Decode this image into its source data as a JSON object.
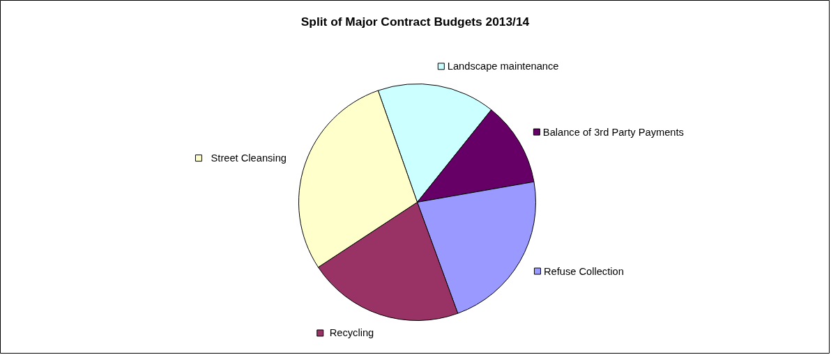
{
  "chart_data": {
    "type": "pie",
    "title": "Split of Major Contract Budgets 2013/14",
    "categories": [
      "Landscape maintenance",
      "Balance of 3rd Party Payments",
      "Refuse Collection",
      "Recycling",
      "Street Cleansing"
    ],
    "values": [
      16.1,
      11.5,
      22.2,
      21.3,
      28.9
    ],
    "colors": [
      "#ccffff",
      "#660066",
      "#9999ff",
      "#993366",
      "#ffffcc"
    ],
    "legend": "right"
  }
}
